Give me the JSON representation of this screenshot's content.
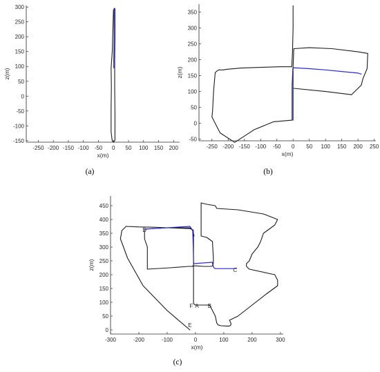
{
  "figure": {
    "colors": {
      "trajectory": "#1a1a1a",
      "highlight": "#2a2acc",
      "axis": "#262626",
      "background": "#ffffff"
    }
  },
  "chart_data": [
    {
      "id": "a",
      "type": "line",
      "caption": "(a)",
      "xlabel": "x(m)",
      "ylabel": "z(m)",
      "xlim": [
        -290,
        220
      ],
      "ylim": [
        -155,
        305
      ],
      "xticks": [
        -250,
        -200,
        -150,
        -100,
        -50,
        0,
        50,
        100,
        150,
        200
      ],
      "yticks": [
        -150,
        -100,
        -50,
        0,
        50,
        100,
        150,
        200,
        250,
        300
      ],
      "grid": false,
      "series": [
        {
          "color": "black",
          "x": [
            0,
            -3,
            -5,
            -8,
            -8,
            -7,
            -8,
            -4,
            0,
            4,
            5,
            5,
            4,
            4,
            5,
            5,
            0
          ],
          "z": [
            -155,
            -152,
            -145,
            -120,
            -40,
            30,
            95,
            150,
            290,
            296,
            293,
            200,
            120,
            30,
            -60,
            -148,
            -155
          ]
        },
        {
          "color": "blue",
          "x": [
            2,
            2,
            1,
            1
          ],
          "z": [
            295,
            200,
            120,
            95
          ]
        }
      ]
    },
    {
      "id": "b",
      "type": "line",
      "caption": "(b)",
      "xlabel": "x(m)",
      "ylabel": "z(m)",
      "xlim": [
        -290,
        255
      ],
      "ylim": [
        -55,
        375
      ],
      "xticks": [
        -250,
        -200,
        -150,
        -100,
        -50,
        0,
        50,
        100,
        150,
        200,
        250
      ],
      "yticks": [
        -50,
        0,
        50,
        100,
        150,
        200,
        250,
        300,
        350
      ],
      "grid": false,
      "series": [
        {
          "color": "black",
          "x": [
            0,
            0,
            -2,
            -4,
            -40,
            -100,
            -160,
            -205,
            -215,
            -230,
            -240,
            -245,
            -248,
            -250,
            -240,
            -225,
            -180,
            -120,
            -60,
            -3,
            -3,
            -1,
            0,
            2,
            50,
            120,
            200,
            230,
            228,
            215,
            210,
            200,
            190,
            180,
            100,
            2
          ],
          "z": [
            370,
            300,
            220,
            178,
            178,
            176,
            174,
            170,
            168,
            168,
            160,
            100,
            40,
            20,
            0,
            -30,
            -60,
            -20,
            5,
            10,
            120,
            172,
            175,
            235,
            238,
            235,
            225,
            220,
            172,
            140,
            120,
            110,
            100,
            90,
            100,
            110
          ]
        },
        {
          "color": "blue",
          "x": [
            0,
            0,
            0,
            0,
            50,
            100,
            150,
            200,
            210
          ],
          "z": [
            10,
            60,
            110,
            175,
            172,
            168,
            163,
            158,
            155
          ]
        }
      ]
    },
    {
      "id": "c",
      "type": "line",
      "caption": "(c)",
      "xlabel": "x(m)",
      "ylabel": "z(m)",
      "xlim": [
        -300,
        310
      ],
      "ylim": [
        -15,
        485
      ],
      "xticks": [
        -300,
        -200,
        -100,
        0,
        100,
        200,
        300
      ],
      "yticks": [
        0,
        50,
        100,
        150,
        200,
        250,
        300,
        350,
        400,
        450
      ],
      "grid": false,
      "point_labels": [
        {
          "text": "A",
          "x": 5,
          "z": 80
        },
        {
          "text": "B",
          "x": 50,
          "z": 80
        },
        {
          "text": "C",
          "x": 140,
          "z": 210
        },
        {
          "text": "D",
          "x": -180,
          "z": 355
        },
        {
          "text": "E",
          "x": -20,
          "z": 10
        },
        {
          "text": "F",
          "x": -15,
          "z": 80
        }
      ],
      "series": [
        {
          "color": "black",
          "x": [
            -20,
            -100,
            -185,
            -240,
            -265,
            -260,
            -245,
            -200,
            -150,
            -100,
            -20,
            -8,
            -7,
            -7,
            0,
            50,
            60,
            70,
            75,
            80,
            90,
            110,
            120,
            125,
            125,
            120,
            150,
            200,
            250,
            290,
            290,
            280,
            190,
            180,
            180,
            190,
            200,
            220,
            230,
            240,
            280,
            290,
            240,
            150,
            75,
            70,
            40,
            20,
            20,
            40,
            60,
            63,
            63,
            60,
            55,
            30,
            0,
            -10,
            -10,
            -25,
            -90,
            -170,
            -170,
            -180,
            -180,
            -100,
            -20,
            -10,
            -5
          ],
          "z": [
            0,
            70,
            160,
            260,
            330,
            360,
            375,
            373,
            372,
            370,
            367,
            362,
            340,
            95,
            90,
            90,
            70,
            50,
            25,
            18,
            15,
            14,
            14,
            18,
            25,
            35,
            50,
            90,
            130,
            160,
            180,
            200,
            220,
            230,
            240,
            250,
            275,
            300,
            320,
            350,
            380,
            400,
            420,
            435,
            440,
            450,
            455,
            460,
            340,
            335,
            320,
            260,
            240,
            232,
            230,
            230,
            232,
            232,
            230,
            230,
            225,
            220,
            300,
            330,
            365,
            370,
            370,
            360,
            340
          ]
        },
        {
          "color": "blue",
          "x": [
            -180,
            -100,
            -20,
            -10,
            -8,
            -7,
            -6,
            60,
            60,
            65,
            70,
            100,
            140,
            145
          ],
          "z": [
            365,
            370,
            375,
            360,
            300,
            250,
            240,
            245,
            240,
            225,
            222,
            222,
            222,
            224
          ]
        }
      ]
    }
  ]
}
